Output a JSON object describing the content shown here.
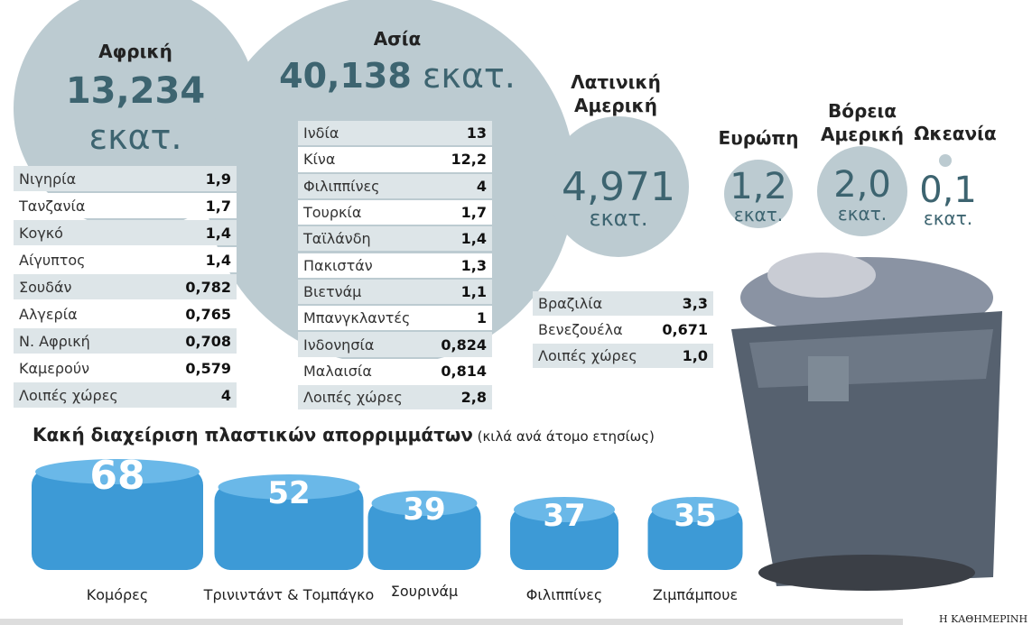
{
  "regions": [
    {
      "name": "Αφρική",
      "total": "13,234",
      "unit": "εκατ.",
      "rows": [
        [
          "Νιγηρία",
          "1,9"
        ],
        [
          "Τανζανία",
          "1,7"
        ],
        [
          "Κογκό",
          "1,4"
        ],
        [
          "Αίγυπτος",
          "1,4"
        ],
        [
          "Σουδάν",
          "0,782"
        ],
        [
          "Αλγερία",
          "0,765"
        ],
        [
          "Ν. Αφρική",
          "0,708"
        ],
        [
          "Καμερούν",
          "0,579"
        ],
        [
          "Λοιπές χώρες",
          "4"
        ]
      ]
    },
    {
      "name": "Ασία",
      "total": "40,138",
      "unit": "εκατ.",
      "rows": [
        [
          "Ινδία",
          "13"
        ],
        [
          "Κίνα",
          "12,2"
        ],
        [
          "Φιλιππίνες",
          "4"
        ],
        [
          "Τουρκία",
          "1,7"
        ],
        [
          "Ταϊλάνδη",
          "1,4"
        ],
        [
          "Πακιστάν",
          "1,3"
        ],
        [
          "Βιετνάμ",
          "1,1"
        ],
        [
          "Μπανγκλαντές",
          "1"
        ],
        [
          "Ινδονησία",
          "0,824"
        ],
        [
          "Μαλαισία",
          "0,814"
        ],
        [
          "Λοιπές χώρες",
          "2,8"
        ]
      ]
    },
    {
      "name": "Λατινική Αμερική",
      "total": "4,971",
      "unit": "εκατ.",
      "rows": [
        [
          "Βραζιλία",
          "3,3"
        ],
        [
          "Βενεζουέλα",
          "0,671"
        ],
        [
          "Λοιπές χώρες",
          "1,0"
        ]
      ]
    },
    {
      "name": "Ευρώπη",
      "total": "1,2",
      "unit": "εκατ.",
      "rows": []
    },
    {
      "name": "Βόρεια Αμερική",
      "total": "2,0",
      "unit": "εκατ.",
      "rows": []
    },
    {
      "name": "Ωκεανία",
      "total": "0,1",
      "unit": "εκατ.",
      "rows": []
    }
  ],
  "plastic": {
    "title": "Κακή διαχείριση πλαστικών απορριμμάτων",
    "subtitle": "(κιλά ανά άτομο ετησίως)",
    "items": [
      {
        "value": "68",
        "label": "Κομόρες"
      },
      {
        "value": "52",
        "label": "Τρινιντάντ & Τομπάγκο"
      },
      {
        "value": "39",
        "label": "Σουρινάμ"
      },
      {
        "value": "37",
        "label": "Φιλιππίνες"
      },
      {
        "value": "35",
        "label": "Ζιμπάμπουε"
      }
    ]
  },
  "source": "Η ΚΑΘΗΜΕΡΙΝΗ"
}
